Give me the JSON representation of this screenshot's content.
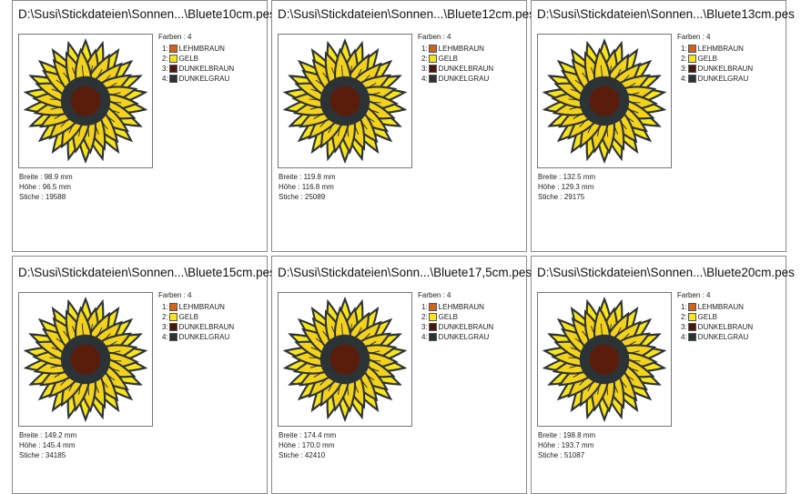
{
  "colors_header": "Farben : 4",
  "threads": [
    {
      "num": "1:",
      "name": "LEHMBRAUN",
      "color": "#d2621c"
    },
    {
      "num": "2:",
      "name": "GELB",
      "color": "#f8e41a"
    },
    {
      "num": "3:",
      "name": "DUNKELBRAUN",
      "color": "#4a170c"
    },
    {
      "num": "4:",
      "name": "DUNKELGRAU",
      "color": "#2c3337"
    }
  ],
  "designs": [
    {
      "title": "D:\\Susi\\Stickdateien\\Sonnen...\\Bluete10cm.pes",
      "width": "Breite : 98.9 mm",
      "height": "Höhe : 96.5 mm",
      "stitches": "Stiche : 19588"
    },
    {
      "title": "D:\\Susi\\Stickdateien\\Sonnen...\\Bluete12cm.pes",
      "width": "Breite : 119.8 mm",
      "height": "Höhe : 116.8 mm",
      "stitches": "Stiche : 25089"
    },
    {
      "title": "D:\\Susi\\Stickdateien\\Sonnen...\\Bluete13cm.pes",
      "width": "Breite : 132.5 mm",
      "height": "Höhe : 129.3 mm",
      "stitches": "Stiche : 29175"
    },
    {
      "title": "D:\\Susi\\Stickdateien\\Sonnen...\\Bluete15cm.pes",
      "width": "Breite : 149.2 mm",
      "height": "Höhe : 145.4 mm",
      "stitches": "Stiche : 34185"
    },
    {
      "title": "D:\\Susi\\Stickdateien\\Sonn...\\Bluete17,5cm.pes",
      "width": "Breite : 174.4 mm",
      "height": "Höhe : 170.0 mm",
      "stitches": "Stiche : 42410"
    },
    {
      "title": "D:\\Susi\\Stickdateien\\Sonnen...\\Bluete20cm.pes",
      "width": "Breite : 198.8 mm",
      "height": "Höhe : 193.7 mm",
      "stitches": "Stiche : 51087"
    }
  ]
}
